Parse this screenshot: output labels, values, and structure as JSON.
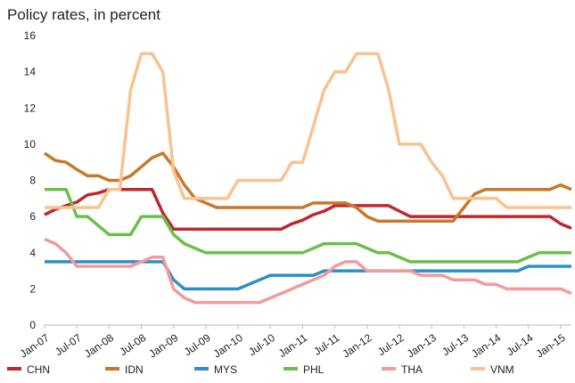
{
  "chart_data": {
    "type": "line",
    "title": "Policy rates, in percent",
    "categories": [
      "Jan-07",
      null,
      null,
      "Jul-07",
      null,
      null,
      "Jan-08",
      null,
      null,
      "Jul-08",
      null,
      null,
      "Jan-09",
      null,
      null,
      "Jul-09",
      null,
      null,
      "Jan-10",
      null,
      null,
      "Jul-10",
      null,
      null,
      "Jan-11",
      null,
      null,
      "Jul-11",
      null,
      null,
      "Jan-12",
      null,
      null,
      "Jul-12",
      null,
      null,
      "Jan-13",
      null,
      null,
      "Jul-13",
      null,
      null,
      "Jan-14",
      null,
      null,
      "Jul-14",
      null,
      null,
      "Jan-15",
      null
    ],
    "ylim": [
      0,
      16
    ],
    "yticks": [
      0,
      2,
      4,
      6,
      8,
      10,
      12,
      14,
      16
    ],
    "grid": false,
    "series": [
      {
        "name": "CHN",
        "color": "#c0272d",
        "values": [
          6.1,
          6.4,
          6.6,
          6.8,
          7.2,
          7.3,
          7.5,
          7.5,
          7.5,
          7.5,
          7.5,
          6.2,
          5.3,
          5.3,
          5.3,
          5.3,
          5.3,
          5.3,
          5.3,
          5.3,
          5.3,
          5.3,
          5.3,
          5.6,
          5.8,
          6.1,
          6.3,
          6.6,
          6.6,
          6.6,
          6.6,
          6.6,
          6.6,
          6.3,
          6.0,
          6.0,
          6.0,
          6.0,
          6.0,
          6.0,
          6.0,
          6.0,
          6.0,
          6.0,
          6.0,
          6.0,
          6.0,
          6.0,
          5.6,
          5.35
        ]
      },
      {
        "name": "IDN",
        "color": "#c8782a",
        "values": [
          9.5,
          9.1,
          9.0,
          8.6,
          8.25,
          8.25,
          8.0,
          8.0,
          8.25,
          8.75,
          9.25,
          9.5,
          8.75,
          7.75,
          7.0,
          6.75,
          6.5,
          6.5,
          6.5,
          6.5,
          6.5,
          6.5,
          6.5,
          6.5,
          6.5,
          6.75,
          6.75,
          6.75,
          6.75,
          6.5,
          6.0,
          5.75,
          5.75,
          5.75,
          5.75,
          5.75,
          5.75,
          5.75,
          5.75,
          6.5,
          7.25,
          7.5,
          7.5,
          7.5,
          7.5,
          7.5,
          7.5,
          7.5,
          7.75,
          7.5
        ]
      },
      {
        "name": "MYS",
        "color": "#2e90c2",
        "values": [
          3.5,
          3.5,
          3.5,
          3.5,
          3.5,
          3.5,
          3.5,
          3.5,
          3.5,
          3.5,
          3.5,
          3.5,
          2.5,
          2.0,
          2.0,
          2.0,
          2.0,
          2.0,
          2.0,
          2.25,
          2.5,
          2.75,
          2.75,
          2.75,
          2.75,
          2.75,
          3.0,
          3.0,
          3.0,
          3.0,
          3.0,
          3.0,
          3.0,
          3.0,
          3.0,
          3.0,
          3.0,
          3.0,
          3.0,
          3.0,
          3.0,
          3.0,
          3.0,
          3.0,
          3.0,
          3.25,
          3.25,
          3.25,
          3.25,
          3.25
        ]
      },
      {
        "name": "PHL",
        "color": "#6cbf4a",
        "values": [
          7.5,
          7.5,
          7.5,
          6.0,
          6.0,
          5.5,
          5.0,
          5.0,
          5.0,
          6.0,
          6.0,
          6.0,
          5.0,
          4.5,
          4.25,
          4.0,
          4.0,
          4.0,
          4.0,
          4.0,
          4.0,
          4.0,
          4.0,
          4.0,
          4.0,
          4.25,
          4.5,
          4.5,
          4.5,
          4.5,
          4.25,
          4.0,
          4.0,
          3.75,
          3.5,
          3.5,
          3.5,
          3.5,
          3.5,
          3.5,
          3.5,
          3.5,
          3.5,
          3.5,
          3.5,
          3.75,
          4.0,
          4.0,
          4.0,
          4.0
        ]
      },
      {
        "name": "THA",
        "color": "#f49a9c",
        "values": [
          4.75,
          4.5,
          4.0,
          3.25,
          3.25,
          3.25,
          3.25,
          3.25,
          3.25,
          3.5,
          3.75,
          3.75,
          2.0,
          1.5,
          1.25,
          1.25,
          1.25,
          1.25,
          1.25,
          1.25,
          1.25,
          1.5,
          1.75,
          2.0,
          2.25,
          2.5,
          2.75,
          3.25,
          3.5,
          3.5,
          3.0,
          3.0,
          3.0,
          3.0,
          3.0,
          2.75,
          2.75,
          2.75,
          2.5,
          2.5,
          2.5,
          2.25,
          2.25,
          2.0,
          2.0,
          2.0,
          2.0,
          2.0,
          2.0,
          1.75
        ]
      },
      {
        "name": "VNM",
        "color": "#fac28f",
        "values": [
          6.5,
          6.5,
          6.5,
          6.5,
          6.5,
          6.5,
          7.5,
          7.5,
          13,
          15,
          15,
          14,
          8.5,
          7.0,
          7.0,
          7.0,
          7.0,
          7.0,
          8.0,
          8.0,
          8.0,
          8.0,
          8.0,
          9,
          9,
          11,
          13,
          14,
          14,
          15,
          15,
          15,
          13,
          10,
          10,
          10,
          9,
          8.25,
          7.0,
          7.0,
          7.0,
          7.0,
          7.0,
          6.5,
          6.5,
          6.5,
          6.5,
          6.5,
          6.5,
          6.5
        ]
      }
    ]
  }
}
